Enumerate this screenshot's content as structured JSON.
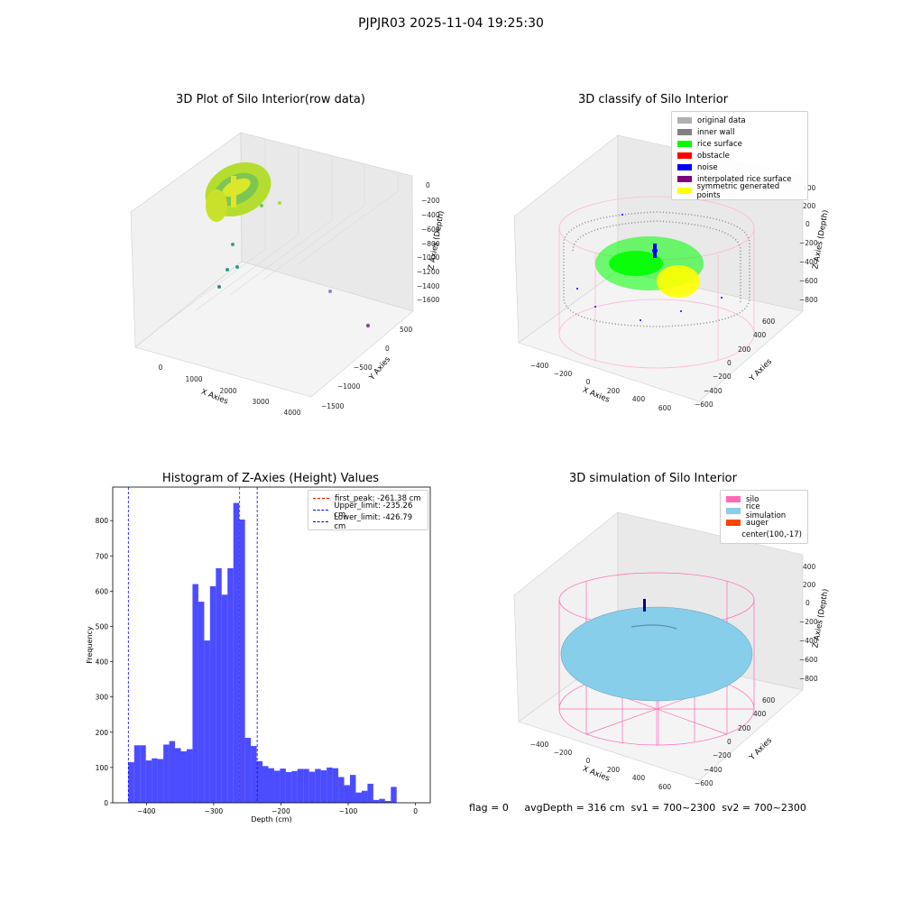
{
  "suptitle": "PJPJR03 2025-11-04 19:25:30",
  "footer": "flag = 0     avgDepth = 316 cm  sv1 = 700~2300  sv2 = 700~2300",
  "plots": {
    "raw": {
      "title": "3D Plot of Silo Interior(row data)",
      "xlabel": "X Axies",
      "ylabel": "Y Axies",
      "zlabel": "Z Axies (Depth)",
      "xticks": [
        "0",
        "1000",
        "2000",
        "3000",
        "4000"
      ],
      "yticks": [
        "500",
        "0",
        "−500",
        "−1000",
        "−1500"
      ],
      "zticks": [
        "0",
        "−200",
        "−400",
        "−600",
        "−800",
        "−1000",
        "−1200",
        "−1400",
        "−1600"
      ]
    },
    "classify": {
      "title": "3D classify of Silo Interior",
      "xlabel": "X Axies",
      "ylabel": "Y Axies",
      "zlabel": "Z Axies (Depth)",
      "xticks": [
        "−400",
        "−200",
        "0",
        "200",
        "400",
        "600"
      ],
      "yticks": [
        "600",
        "400",
        "200",
        "0",
        "−200",
        "−400",
        "−600"
      ],
      "zticks": [
        "400",
        "200",
        "0",
        "−200",
        "−400",
        "−600",
        "−800"
      ],
      "legend": [
        {
          "label": "original data",
          "color": "#b0b0b0"
        },
        {
          "label": "inner wall",
          "color": "#808080"
        },
        {
          "label": "rice surface",
          "color": "#00ff00"
        },
        {
          "label": "obstacle",
          "color": "#ff0000"
        },
        {
          "label": "noise",
          "color": "#0000ff"
        },
        {
          "label": "interpolated rice surface",
          "color": "#800080"
        },
        {
          "label": "symmetric generated points",
          "color": "#ffff00"
        }
      ]
    },
    "sim": {
      "title": "3D simulation of Silo Interior",
      "xlabel": "X Axies",
      "ylabel": "Y Axies",
      "zlabel": "Z Axies (Depth)",
      "xticks": [
        "−400",
        "−200",
        "0",
        "200",
        "400",
        "600"
      ],
      "yticks": [
        "600",
        "400",
        "200",
        "0",
        "−200",
        "−400",
        "−600"
      ],
      "zticks": [
        "400",
        "200",
        "0",
        "−200",
        "−400",
        "−600",
        "−800"
      ],
      "legend": [
        {
          "label": "silo",
          "color": "#ff69b4"
        },
        {
          "label": "rice simulation",
          "color": "#87ceeb"
        },
        {
          "label": "auger",
          "color": "#ff4500"
        },
        {
          "label": "center(100,-17)",
          "color": ""
        }
      ]
    }
  },
  "chart_data": {
    "type": "bar",
    "title": "Histogram of Z-Axies (Height) Values",
    "xlabel": "Depth (cm)",
    "ylabel": "Frequency",
    "xlim": [
      -450,
      22
    ],
    "ylim": [
      0,
      895
    ],
    "xticks": [
      -400,
      -300,
      -200,
      -100,
      0
    ],
    "yticks": [
      0,
      100,
      200,
      300,
      400,
      500,
      600,
      700,
      800
    ],
    "bar_color": "#0000ff",
    "bin_start": -426.79,
    "bin_width": 8.67,
    "values": [
      115,
      163,
      163,
      120,
      126,
      124,
      165,
      175,
      155,
      146,
      152,
      620,
      570,
      460,
      614,
      665,
      590,
      665,
      850,
      803,
      184,
      161,
      118,
      104,
      98,
      91,
      97,
      87,
      90,
      96,
      96,
      88,
      96,
      92,
      100,
      98,
      73,
      50,
      79,
      29,
      34,
      54,
      8,
      11,
      5,
      45
    ],
    "lines": [
      {
        "name": "first_peak: -261.38 cm",
        "x": -261.38,
        "color": "#ff0000"
      },
      {
        "name": "Upper_limit: -235.26 cm",
        "x": -235.26,
        "color": "#0000ff"
      },
      {
        "name": "Lower_limit: -426.79 cm",
        "x": -426.79,
        "color": "#0000ff"
      }
    ],
    "legend_position": "top-right"
  }
}
